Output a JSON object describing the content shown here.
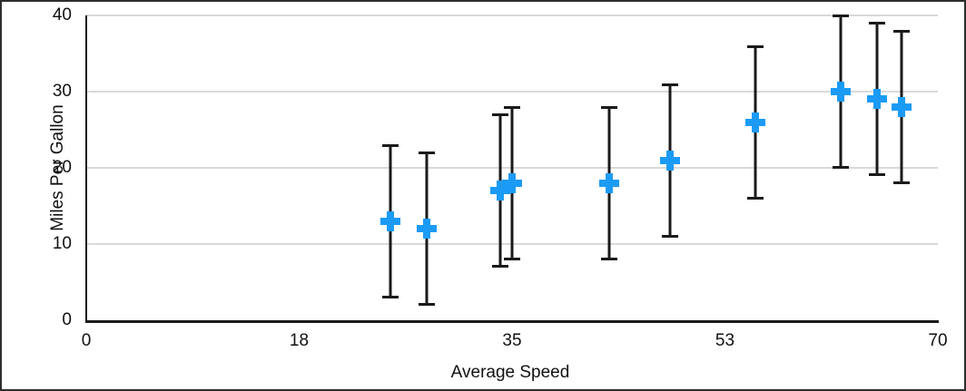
{
  "chart_data": {
    "type": "scatter",
    "title": "",
    "xlabel": "Average Speed",
    "ylabel": "Miles Per Gallon",
    "xlim": [
      0,
      70
    ],
    "ylim": [
      0,
      40
    ],
    "x_tick_labels": [
      "0",
      "18",
      "35",
      "53",
      "70"
    ],
    "y_tick_labels": [
      "0",
      "10",
      "20",
      "30",
      "40"
    ],
    "grid": "horizontal-only",
    "legend": "none",
    "marker_style": "plus",
    "error_bars": {
      "direction": "vertical",
      "type": "symmetric",
      "value": 10
    },
    "points": [
      {
        "x": 25,
        "y": 13,
        "y_min": 3,
        "y_max": 23
      },
      {
        "x": 28,
        "y": 12,
        "y_min": 2,
        "y_max": 22
      },
      {
        "x": 34,
        "y": 17,
        "y_min": 7,
        "y_max": 27
      },
      {
        "x": 35,
        "y": 18,
        "y_min": 8,
        "y_max": 28
      },
      {
        "x": 43,
        "y": 18,
        "y_min": 8,
        "y_max": 28
      },
      {
        "x": 48,
        "y": 21,
        "y_min": 11,
        "y_max": 31
      },
      {
        "x": 55,
        "y": 26,
        "y_min": 16,
        "y_max": 36
      },
      {
        "x": 62,
        "y": 30,
        "y_min": 20,
        "y_max": 40
      },
      {
        "x": 65,
        "y": 29,
        "y_min": 19,
        "y_max": 39
      },
      {
        "x": 67,
        "y": 28,
        "y_min": 18,
        "y_max": 38
      }
    ],
    "colors": {
      "marker": "#1c9bf6",
      "error_bar": "#1a1a1a",
      "axis": "#1a1a1a",
      "gridline": "#d9d9d9",
      "text": "#111111",
      "background": "#ffffff"
    }
  }
}
